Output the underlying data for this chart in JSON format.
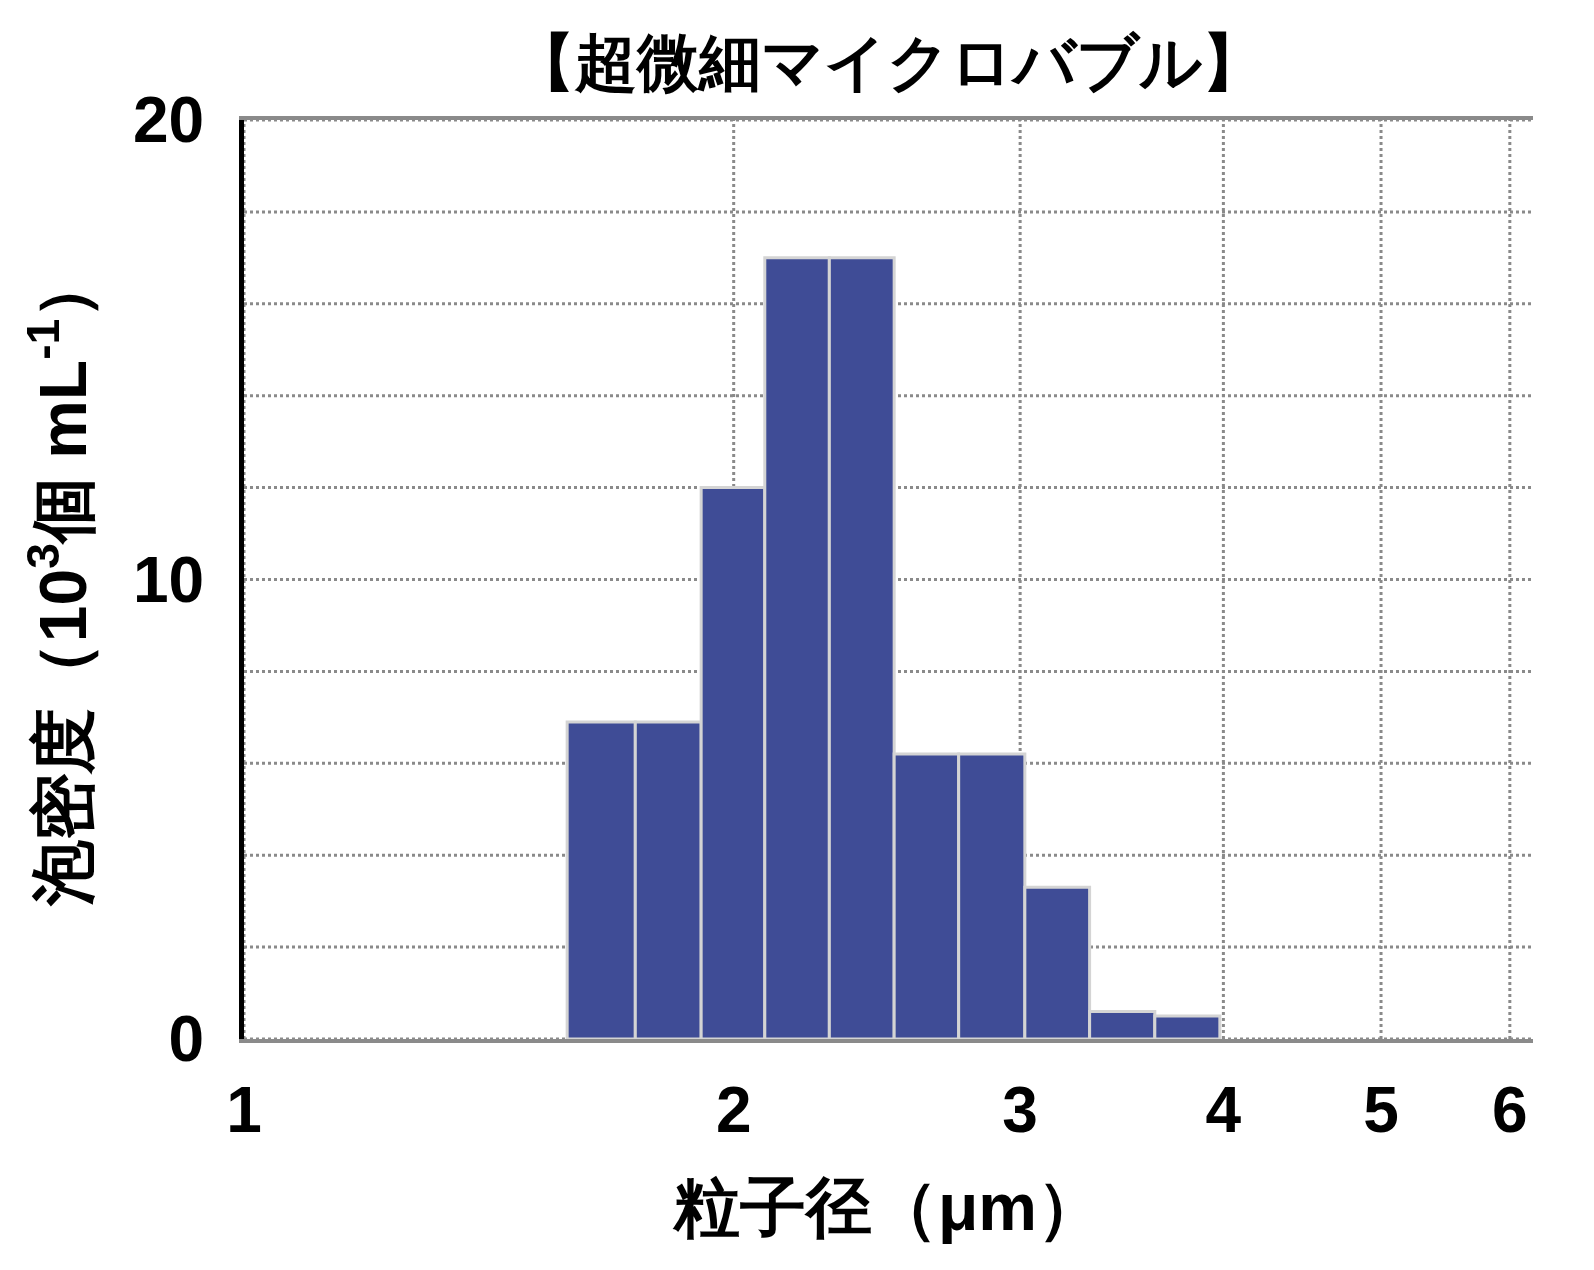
{
  "chart_data": {
    "type": "histogram",
    "title": "【超微細マイクロバブル】",
    "xlabel": "粒子径（μm）",
    "ylabel": "泡密度（10$^{3}$個 mL$^{-1}$）",
    "bins": [
      1.58,
      1.74,
      1.91,
      2.09,
      2.29,
      2.51,
      2.75,
      3.02,
      3.31,
      3.63,
      3.98
    ],
    "values": [
      6.9,
      6.9,
      12,
      17,
      17,
      6.2,
      6.2,
      3.3,
      0.6,
      0.5
    ],
    "color": "#3f4c96",
    "log": "x",
    "xlim": [
      1,
      6.2
    ],
    "xticks": [
      1,
      2,
      3,
      4,
      5,
      6
    ],
    "ylim": [
      0,
      20
    ],
    "yticks": [
      0,
      {
        "value": 2,
        "label": null
      },
      {
        "value": 4,
        "label": null
      },
      {
        "value": 6,
        "label": null
      },
      {
        "value": 8,
        "label": null
      },
      10,
      {
        "value": 12,
        "label": null
      },
      {
        "value": 14,
        "label": null
      },
      {
        "value": 16,
        "label": null
      },
      {
        "value": 18,
        "label": null
      },
      20
    ],
    "grid": true
  }
}
